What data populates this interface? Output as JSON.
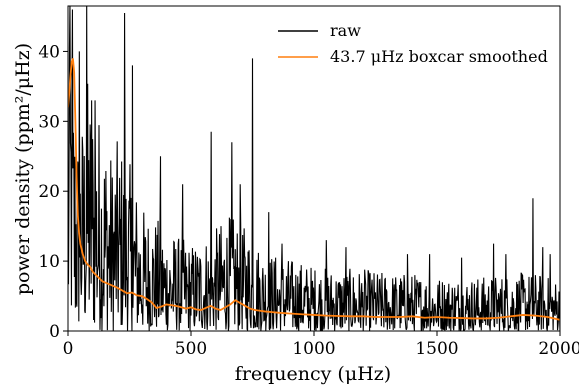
{
  "chart_data": {
    "type": "line",
    "title": "",
    "xlabel": "frequency (μHz)",
    "ylabel": "power density (ppm²/μHz)",
    "xlim": [
      0,
      2000
    ],
    "ylim": [
      0,
      46.5
    ],
    "x_ticks": [
      0,
      500,
      1000,
      1500,
      2000
    ],
    "y_ticks": [
      0,
      10,
      20,
      30,
      40
    ],
    "x_tick_labels": [
      "0",
      "500",
      "1000",
      "1500",
      "2000"
    ],
    "y_tick_labels": [
      "0",
      "10",
      "20",
      "30",
      "40"
    ],
    "grid": false,
    "legend_position": "top-right",
    "series": [
      {
        "name": "raw",
        "color": "#000000",
        "envelope": [
          [
            0,
            31
          ],
          [
            10,
            44
          ],
          [
            20,
            36
          ],
          [
            30,
            32
          ],
          [
            40,
            28
          ],
          [
            60,
            30
          ],
          [
            80,
            35
          ],
          [
            100,
            33
          ],
          [
            120,
            31
          ],
          [
            150,
            28
          ],
          [
            180,
            24
          ],
          [
            200,
            26
          ],
          [
            230,
            25
          ],
          [
            260,
            22
          ],
          [
            300,
            17
          ],
          [
            350,
            16
          ],
          [
            400,
            14
          ],
          [
            450,
            13
          ],
          [
            500,
            12
          ],
          [
            550,
            13
          ],
          [
            600,
            14
          ],
          [
            650,
            16
          ],
          [
            700,
            15
          ],
          [
            750,
            13
          ],
          [
            800,
            11
          ],
          [
            900,
            10
          ],
          [
            1000,
            9
          ],
          [
            1100,
            8.5
          ],
          [
            1200,
            8.5
          ],
          [
            1300,
            8
          ],
          [
            1400,
            8
          ],
          [
            1500,
            7.5
          ],
          [
            1600,
            7.5
          ],
          [
            1700,
            7.5
          ],
          [
            1800,
            8
          ],
          [
            1900,
            8
          ],
          [
            2000,
            7
          ]
        ],
        "peaks": [
          [
            8,
            47
          ],
          [
            18,
            46
          ],
          [
            45,
            40
          ],
          [
            75,
            47
          ],
          [
            95,
            33
          ],
          [
            110,
            33
          ],
          [
            230,
            45.5
          ],
          [
            262,
            38
          ],
          [
            375,
            25
          ],
          [
            465,
            21
          ],
          [
            582,
            28.5
          ],
          [
            666,
            27
          ],
          [
            700,
            21
          ],
          [
            750,
            39
          ],
          [
            815,
            17
          ],
          [
            870,
            12.5
          ],
          [
            1050,
            13
          ],
          [
            1130,
            12
          ],
          [
            1380,
            11
          ],
          [
            1470,
            11
          ],
          [
            1600,
            10.5
          ],
          [
            1730,
            12.5
          ],
          [
            1780,
            11
          ],
          [
            1890,
            19
          ],
          [
            1930,
            12
          ],
          [
            1960,
            11
          ]
        ]
      },
      {
        "name": "43.7 μHz boxcar smoothed",
        "color": "#ff7f0e",
        "x": [
          0,
          5,
          10,
          15,
          20,
          25,
          30,
          35,
          40,
          45,
          50,
          60,
          70,
          80,
          90,
          100,
          120,
          140,
          160,
          180,
          200,
          220,
          240,
          260,
          280,
          300,
          320,
          340,
          360,
          380,
          400,
          420,
          450,
          480,
          500,
          520,
          540,
          560,
          580,
          600,
          620,
          640,
          660,
          680,
          700,
          720,
          740,
          760,
          780,
          800,
          830,
          860,
          900,
          950,
          1000,
          1050,
          1100,
          1150,
          1200,
          1250,
          1300,
          1350,
          1400,
          1450,
          1500,
          1550,
          1600,
          1650,
          1700,
          1750,
          1800,
          1850,
          1900,
          1950,
          2000
        ],
        "y": [
          32,
          34,
          36.5,
          38.5,
          39,
          37,
          30,
          22,
          16.5,
          14,
          12.5,
          11,
          10,
          9.5,
          9.2,
          8.5,
          7.8,
          7.1,
          6.8,
          6.5,
          6.2,
          5.8,
          5.4,
          5.5,
          5.1,
          5.0,
          4.6,
          4.1,
          3.3,
          3.5,
          3.8,
          3.7,
          3.5,
          3.2,
          3.4,
          3.1,
          3.0,
          3.3,
          3.6,
          3.2,
          3.0,
          3.4,
          3.8,
          4.4,
          4.0,
          3.6,
          3.2,
          3.0,
          2.9,
          2.8,
          2.7,
          2.6,
          2.5,
          2.4,
          2.3,
          2.2,
          2.15,
          2.1,
          2.1,
          2.0,
          2.0,
          2.0,
          2.1,
          1.9,
          2.0,
          1.9,
          1.85,
          1.8,
          1.8,
          1.9,
          2.1,
          2.3,
          2.2,
          2.0,
          1.6
        ]
      }
    ]
  }
}
